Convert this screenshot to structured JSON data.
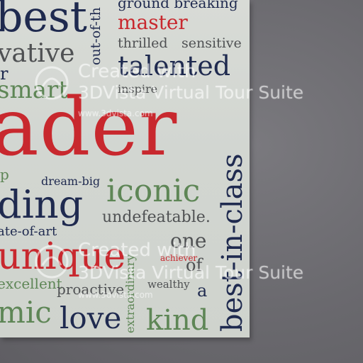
{
  "poster": {
    "words": {
      "best": "best",
      "ground_breaking": "ground breaking",
      "out_of_this": "out-of-th",
      "master": "master",
      "innovative": "vative",
      "thrilled": "thrilled",
      "sensitive": "sensitive",
      "talented": "talented",
      "r": "r",
      "smart": "smart",
      "inspire": "inspire",
      "leader": "ader",
      "best_in_class": "best-in-class",
      "p": "p",
      "dream_big": "dream-big",
      "iconic": "iconic",
      "leading": "ding",
      "undefeatable": "undefeatable.",
      "state_of_art": "ate-of-art",
      "one": "one",
      "unique": "unique",
      "of": "of",
      "achiever": "achiever",
      "excellent": "excellent",
      "proactive": "proactive",
      "wealthy": "wealthy",
      "a": "a",
      "dynamic": "mic",
      "love": "love",
      "extraordinary": "extraordinary",
      "kind": "kind"
    }
  },
  "watermark": {
    "line1": "Created with",
    "line2": "3DVista Virtual Tour Suite",
    "url": "www.3dvista.com"
  },
  "colors": {
    "navy": "#1f2a4f",
    "red": "#c8282e",
    "green": "#5e8656",
    "wall": "#6e6d72",
    "poster": "#d4d7d2"
  }
}
